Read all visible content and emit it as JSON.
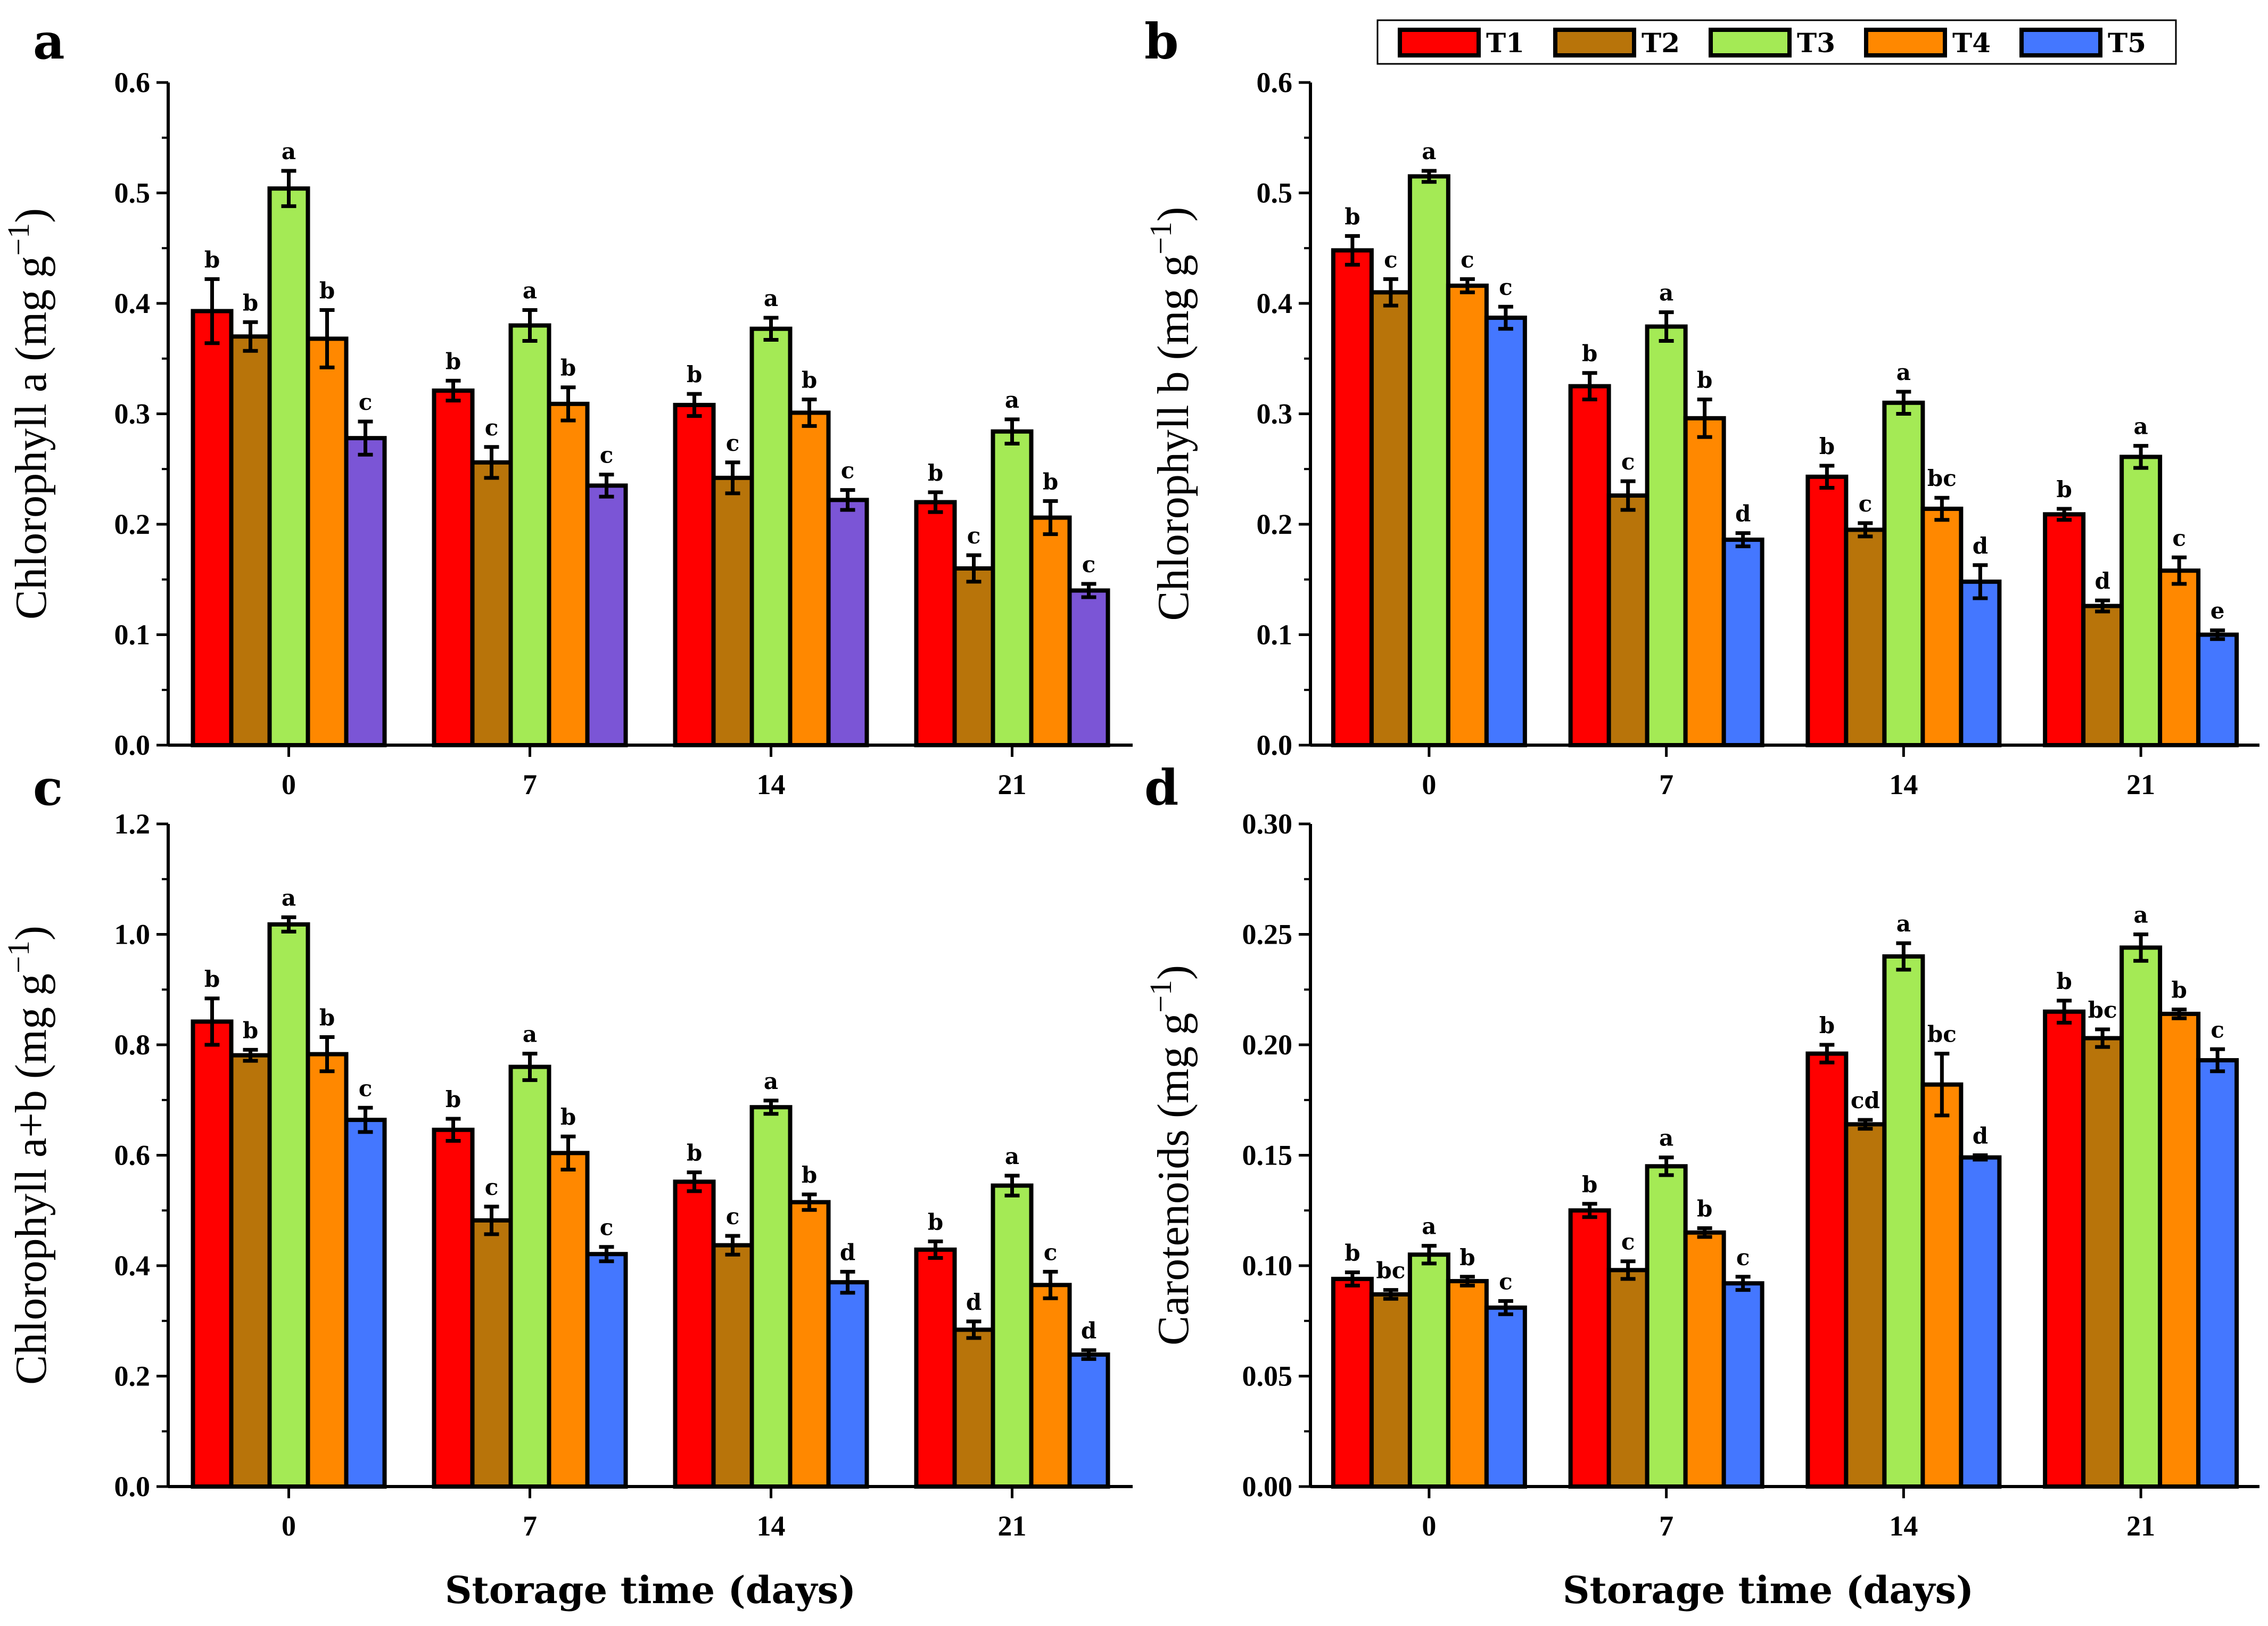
{
  "legend": {
    "entries": [
      {
        "name": "T1",
        "color": "#ff0000"
      },
      {
        "name": "T2",
        "color": "#b8740a"
      },
      {
        "name": "T3",
        "color": "#a4ea55"
      },
      {
        "name": "T4",
        "color": "#ff8800"
      },
      {
        "name": "T5",
        "color": "#4477ff"
      }
    ]
  },
  "xlabel_bottom": "Storage time (days)",
  "chart_data": [
    {
      "panel": "a",
      "type": "bar",
      "ylabel": "Chlorophyll a (mg g",
      "ylabel_sup": "−1",
      "ylabel_end": ")",
      "ylim": [
        0,
        0.6
      ],
      "yticks": [
        "0.0",
        "0.1",
        "0.2",
        "0.3",
        "0.4",
        "0.5",
        "0.6"
      ],
      "categories": [
        "0",
        "7",
        "14",
        "21"
      ],
      "t5_color": "#7b55d6",
      "series": [
        {
          "name": "T1",
          "values": [
            0.393,
            0.321,
            0.308,
            0.22
          ],
          "errors": [
            0.029,
            0.009,
            0.01,
            0.009
          ],
          "letters": [
            "b",
            "b",
            "b",
            "b"
          ]
        },
        {
          "name": "T2",
          "values": [
            0.37,
            0.256,
            0.242,
            0.16
          ],
          "errors": [
            0.013,
            0.014,
            0.014,
            0.012
          ],
          "letters": [
            "b",
            "c",
            "c",
            "c"
          ]
        },
        {
          "name": "T3",
          "values": [
            0.504,
            0.38,
            0.377,
            0.284
          ],
          "errors": [
            0.016,
            0.014,
            0.01,
            0.011
          ],
          "letters": [
            "a",
            "a",
            "a",
            "a"
          ]
        },
        {
          "name": "T4",
          "values": [
            0.368,
            0.309,
            0.301,
            0.206
          ],
          "errors": [
            0.026,
            0.015,
            0.012,
            0.015
          ],
          "letters": [
            "b",
            "b",
            "b",
            "b"
          ]
        },
        {
          "name": "T5",
          "values": [
            0.278,
            0.235,
            0.222,
            0.14
          ],
          "errors": [
            0.015,
            0.01,
            0.009,
            0.006
          ],
          "letters": [
            "c",
            "c",
            "c",
            "c"
          ]
        }
      ]
    },
    {
      "panel": "b",
      "type": "bar",
      "ylabel": "Chlorophyll b (mg g",
      "ylabel_sup": "−1",
      "ylabel_end": ")",
      "ylim": [
        0,
        0.6
      ],
      "yticks": [
        "0.0",
        "0.1",
        "0.2",
        "0.3",
        "0.4",
        "0.5",
        "0.6"
      ],
      "categories": [
        "0",
        "7",
        "14",
        "21"
      ],
      "t5_color": "#4477ff",
      "series": [
        {
          "name": "T1",
          "values": [
            0.448,
            0.325,
            0.243,
            0.209
          ],
          "errors": [
            0.013,
            0.012,
            0.01,
            0.005
          ],
          "letters": [
            "b",
            "b",
            "b",
            "b"
          ]
        },
        {
          "name": "T2",
          "values": [
            0.41,
            0.226,
            0.195,
            0.126
          ],
          "errors": [
            0.012,
            0.013,
            0.006,
            0.005
          ],
          "letters": [
            "c",
            "c",
            "c",
            "d"
          ]
        },
        {
          "name": "T3",
          "values": [
            0.515,
            0.379,
            0.31,
            0.261
          ],
          "errors": [
            0.005,
            0.013,
            0.01,
            0.01
          ],
          "letters": [
            "a",
            "a",
            "a",
            "a"
          ]
        },
        {
          "name": "T4",
          "values": [
            0.416,
            0.296,
            0.214,
            0.158
          ],
          "errors": [
            0.006,
            0.017,
            0.01,
            0.012
          ],
          "letters": [
            "c",
            "b",
            "bc",
            "c"
          ]
        },
        {
          "name": "T5",
          "values": [
            0.387,
            0.186,
            0.148,
            0.1
          ],
          "errors": [
            0.01,
            0.006,
            0.015,
            0.004
          ],
          "letters": [
            "c",
            "d",
            "d",
            "e"
          ]
        }
      ]
    },
    {
      "panel": "c",
      "type": "bar",
      "ylabel": "Chlorophyll a+b (mg g",
      "ylabel_sup": "−1",
      "ylabel_end": ")",
      "ylim": [
        0,
        1.2
      ],
      "yticks": [
        "0.0",
        "0.2",
        "0.4",
        "0.6",
        "0.8",
        "1.0",
        "1.2"
      ],
      "categories": [
        "0",
        "7",
        "14",
        "21"
      ],
      "t5_color": "#4477ff",
      "series": [
        {
          "name": "T1",
          "values": [
            0.842,
            0.646,
            0.552,
            0.429
          ],
          "errors": [
            0.042,
            0.02,
            0.017,
            0.015
          ],
          "letters": [
            "b",
            "b",
            "b",
            "b"
          ]
        },
        {
          "name": "T2",
          "values": [
            0.781,
            0.482,
            0.437,
            0.284
          ],
          "errors": [
            0.01,
            0.025,
            0.017,
            0.015
          ],
          "letters": [
            "b",
            "c",
            "c",
            "d"
          ]
        },
        {
          "name": "T3",
          "values": [
            1.018,
            0.76,
            0.687,
            0.545
          ],
          "errors": [
            0.013,
            0.024,
            0.012,
            0.018
          ],
          "letters": [
            "a",
            "a",
            "a",
            "a"
          ]
        },
        {
          "name": "T4",
          "values": [
            0.783,
            0.604,
            0.515,
            0.365
          ],
          "errors": [
            0.031,
            0.03,
            0.014,
            0.024
          ],
          "letters": [
            "b",
            "b",
            "b",
            "c"
          ]
        },
        {
          "name": "T5",
          "values": [
            0.664,
            0.421,
            0.37,
            0.239
          ],
          "errors": [
            0.022,
            0.013,
            0.019,
            0.008
          ],
          "letters": [
            "c",
            "c",
            "d",
            "d"
          ]
        }
      ]
    },
    {
      "panel": "d",
      "type": "bar",
      "ylabel": "Carotenoids (mg g",
      "ylabel_sup": "−1",
      "ylabel_end": ")",
      "ylim": [
        0,
        0.3
      ],
      "yticks": [
        "0.00",
        "0.05",
        "0.10",
        "0.15",
        "0.20",
        "0.25",
        "0.30"
      ],
      "categories": [
        "0",
        "7",
        "14",
        "21"
      ],
      "t5_color": "#4477ff",
      "series": [
        {
          "name": "T1",
          "values": [
            0.094,
            0.125,
            0.196,
            0.215
          ],
          "errors": [
            0.003,
            0.003,
            0.004,
            0.005
          ],
          "letters": [
            "b",
            "b",
            "b",
            "b"
          ]
        },
        {
          "name": "T2",
          "values": [
            0.087,
            0.098,
            0.164,
            0.203
          ],
          "errors": [
            0.002,
            0.004,
            0.002,
            0.004
          ],
          "letters": [
            "bc",
            "c",
            "cd",
            "bc"
          ]
        },
        {
          "name": "T3",
          "values": [
            0.105,
            0.145,
            0.24,
            0.244
          ],
          "errors": [
            0.004,
            0.004,
            0.006,
            0.006
          ],
          "letters": [
            "a",
            "a",
            "a",
            "a"
          ]
        },
        {
          "name": "T4",
          "values": [
            0.093,
            0.115,
            0.182,
            0.214
          ],
          "errors": [
            0.002,
            0.002,
            0.014,
            0.002
          ],
          "letters": [
            "b",
            "b",
            "bc",
            "b"
          ]
        },
        {
          "name": "T5",
          "values": [
            0.081,
            0.092,
            0.149,
            0.193
          ],
          "errors": [
            0.003,
            0.003,
            0.001,
            0.005
          ],
          "letters": [
            "c",
            "c",
            "d",
            "c"
          ]
        }
      ]
    }
  ]
}
